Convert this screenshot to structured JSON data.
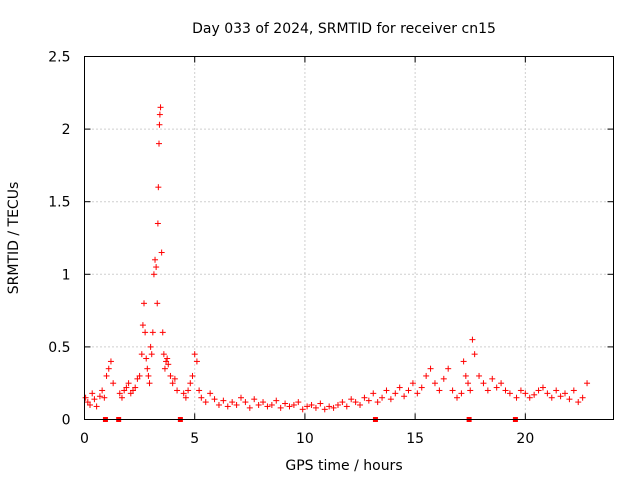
{
  "chart_data": {
    "type": "scatter",
    "title": "Day 033 of 2024, SRMTID for receiver cn15",
    "xlabel": "GPS time / hours",
    "ylabel": "SRMTID / TECUs",
    "xlim": [
      0,
      24
    ],
    "ylim": [
      0,
      2.5
    ],
    "xticks": [
      0,
      5,
      10,
      15,
      20
    ],
    "xtick_labels": [
      "0",
      "5",
      "10",
      "15",
      "20"
    ],
    "yticks": [
      0,
      0.5,
      1,
      1.5,
      2,
      2.5
    ],
    "ytick_labels": [
      "0",
      "0.5",
      "1",
      "1.5",
      "2",
      "2.5"
    ],
    "grid": true,
    "marker": "plus",
    "series_color": "#ff0000",
    "series": [
      {
        "name": "SRMTID",
        "x": [
          0.05,
          0.15,
          0.25,
          0.35,
          0.45,
          0.55,
          0.7,
          0.8,
          0.9,
          1.0,
          1.1,
          1.2,
          1.3,
          1.6,
          1.7,
          1.8,
          1.9,
          2.0,
          2.1,
          2.2,
          2.3,
          2.4,
          2.5,
          2.6,
          2.65,
          2.7,
          2.75,
          2.8,
          2.85,
          2.9,
          2.95,
          3.0,
          3.05,
          3.1,
          3.15,
          3.2,
          3.25,
          3.3,
          3.33,
          3.35,
          3.38,
          3.4,
          3.42,
          3.45,
          3.5,
          3.55,
          3.6,
          3.65,
          3.7,
          3.75,
          3.8,
          3.9,
          4.0,
          4.1,
          4.2,
          4.5,
          4.6,
          4.7,
          4.8,
          4.9,
          5.0,
          5.1,
          5.2,
          5.3,
          5.5,
          5.7,
          5.9,
          6.1,
          6.3,
          6.5,
          6.7,
          6.9,
          7.1,
          7.3,
          7.5,
          7.7,
          7.9,
          8.1,
          8.3,
          8.5,
          8.7,
          8.9,
          9.1,
          9.3,
          9.5,
          9.7,
          9.9,
          10.1,
          10.3,
          10.5,
          10.7,
          10.9,
          11.1,
          11.3,
          11.5,
          11.7,
          11.9,
          12.1,
          12.3,
          12.5,
          12.7,
          12.9,
          13.1,
          13.3,
          13.5,
          13.7,
          13.9,
          14.1,
          14.3,
          14.5,
          14.7,
          14.9,
          15.1,
          15.3,
          15.5,
          15.7,
          15.9,
          16.1,
          16.3,
          16.5,
          16.7,
          16.9,
          17.1,
          17.2,
          17.3,
          17.4,
          17.5,
          17.6,
          17.7,
          17.9,
          18.1,
          18.3,
          18.5,
          18.7,
          18.9,
          19.1,
          19.3,
          19.6,
          19.8,
          20.0,
          20.2,
          20.4,
          20.6,
          20.8,
          21.0,
          21.2,
          21.4,
          21.6,
          21.8,
          22.0,
          22.2,
          22.4,
          22.6,
          22.8
        ],
        "y": [
          0.15,
          0.12,
          0.1,
          0.18,
          0.14,
          0.09,
          0.16,
          0.2,
          0.15,
          0.3,
          0.35,
          0.4,
          0.25,
          0.18,
          0.15,
          0.2,
          0.22,
          0.25,
          0.18,
          0.2,
          0.22,
          0.28,
          0.3,
          0.45,
          0.65,
          0.8,
          0.6,
          0.42,
          0.35,
          0.3,
          0.25,
          0.5,
          0.45,
          0.6,
          1.0,
          1.1,
          1.05,
          0.8,
          1.35,
          1.6,
          1.9,
          2.03,
          2.1,
          2.15,
          1.15,
          0.6,
          0.45,
          0.35,
          0.4,
          0.42,
          0.38,
          0.3,
          0.25,
          0.28,
          0.2,
          0.18,
          0.15,
          0.2,
          0.25,
          0.3,
          0.45,
          0.4,
          0.2,
          0.15,
          0.12,
          0.18,
          0.14,
          0.1,
          0.13,
          0.09,
          0.12,
          0.1,
          0.15,
          0.12,
          0.08,
          0.14,
          0.1,
          0.12,
          0.09,
          0.1,
          0.13,
          0.08,
          0.11,
          0.09,
          0.1,
          0.12,
          0.07,
          0.09,
          0.1,
          0.08,
          0.11,
          0.07,
          0.09,
          0.08,
          0.1,
          0.12,
          0.09,
          0.14,
          0.12,
          0.1,
          0.15,
          0.13,
          0.18,
          0.12,
          0.15,
          0.2,
          0.14,
          0.18,
          0.22,
          0.16,
          0.2,
          0.25,
          0.18,
          0.22,
          0.3,
          0.35,
          0.25,
          0.2,
          0.28,
          0.35,
          0.2,
          0.15,
          0.18,
          0.4,
          0.3,
          0.25,
          0.2,
          0.55,
          0.45,
          0.3,
          0.25,
          0.2,
          0.28,
          0.22,
          0.25,
          0.2,
          0.18,
          0.15,
          0.2,
          0.18,
          0.15,
          0.17,
          0.2,
          0.22,
          0.18,
          0.15,
          0.2,
          0.16,
          0.18,
          0.14,
          0.2,
          0.12,
          0.15,
          0.25
        ]
      }
    ],
    "zero_markers_x": [
      0.95,
      1.55,
      4.35,
      13.2,
      17.45,
      19.55
    ]
  }
}
